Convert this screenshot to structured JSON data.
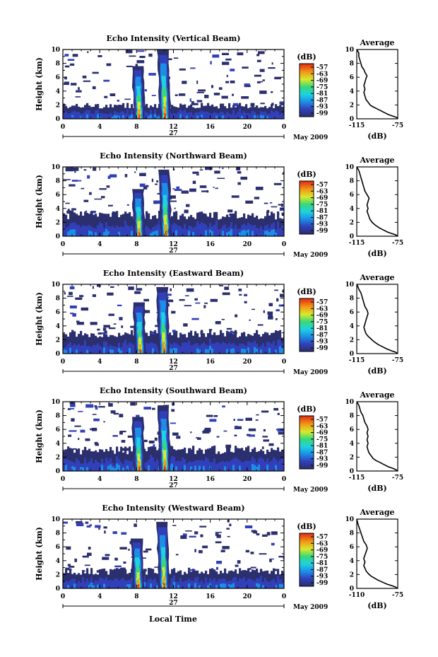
{
  "figure": {
    "xlabel": "Local Time",
    "date_label": "May 2009",
    "day_label": "27"
  },
  "chart_data": [
    {
      "type": "heatmap",
      "title": "Echo Intensity (Vertical Beam)",
      "ylabel": "Height (km)",
      "x_ticks": [
        "0",
        "4",
        "8",
        "12",
        "16",
        "20",
        "0"
      ],
      "xlim": [
        0,
        24
      ],
      "y_ticks": [
        "0",
        "2",
        "4",
        "6",
        "8",
        "10"
      ],
      "ylim": [
        0,
        10
      ],
      "colorbar": {
        "label": "(dB)",
        "ticks": [
          "-57",
          "-63",
          "-69",
          "-75",
          "-81",
          "-87",
          "-93",
          "-99"
        ]
      },
      "storm_cells": [
        {
          "time": 8.3,
          "top_km": 7.6
        },
        {
          "time": 11.1,
          "top_km": 10.0
        }
      ],
      "layer_top_km": 2.0,
      "average_profile": {
        "title": "Average",
        "xlabel": "(dB)",
        "x_ticks": [
          "-115",
          "-75"
        ],
        "xlim": [
          -115,
          -75
        ],
        "ylim": [
          0,
          10
        ],
        "points": [
          [
            -75,
            0.0
          ],
          [
            -76,
            0.2
          ],
          [
            -80,
            0.4
          ],
          [
            -84,
            0.6
          ],
          [
            -88,
            0.9
          ],
          [
            -92,
            1.2
          ],
          [
            -96,
            1.5
          ],
          [
            -100,
            1.8
          ],
          [
            -102,
            2.0
          ],
          [
            -104,
            2.4
          ],
          [
            -106,
            2.8
          ],
          [
            -107,
            3.3
          ],
          [
            -108,
            3.8
          ],
          [
            -107,
            4.3
          ],
          [
            -108,
            4.8
          ],
          [
            -107,
            5.3
          ],
          [
            -106,
            5.8
          ],
          [
            -105,
            6.2
          ],
          [
            -107,
            6.7
          ],
          [
            -108,
            7.1
          ],
          [
            -110,
            7.5
          ],
          [
            -111,
            8.0
          ],
          [
            -112,
            8.5
          ],
          [
            -113,
            9.0
          ],
          [
            -113,
            9.5
          ],
          [
            -115,
            10.0
          ]
        ]
      }
    },
    {
      "type": "heatmap",
      "title": "Echo Intensity (Northward Beam)",
      "ylabel": "Height (km)",
      "x_ticks": [
        "0",
        "4",
        "8",
        "12",
        "16",
        "20",
        "0"
      ],
      "xlim": [
        0,
        24
      ],
      "y_ticks": [
        "0",
        "2",
        "4",
        "6",
        "8",
        "10"
      ],
      "ylim": [
        0,
        10
      ],
      "colorbar": {
        "label": "(dB)",
        "ticks": [
          "-57",
          "-63",
          "-69",
          "-75",
          "-81",
          "-87",
          "-93",
          "-99"
        ]
      },
      "storm_cells": [
        {
          "time": 8.3,
          "top_km": 6.8
        },
        {
          "time": 11.2,
          "top_km": 9.6
        }
      ],
      "layer_top_km": 3.2,
      "average_profile": {
        "title": "Average",
        "xlabel": "(dB)",
        "x_ticks": [
          "-115",
          "-75"
        ],
        "xlim": [
          -115,
          -75
        ],
        "ylim": [
          0,
          10
        ],
        "points": [
          [
            -75,
            0.0
          ],
          [
            -77,
            0.2
          ],
          [
            -81,
            0.4
          ],
          [
            -85,
            0.6
          ],
          [
            -89,
            0.9
          ],
          [
            -93,
            1.2
          ],
          [
            -97,
            1.6
          ],
          [
            -100,
            2.0
          ],
          [
            -102,
            2.4
          ],
          [
            -103,
            2.8
          ],
          [
            -104,
            3.2
          ],
          [
            -105,
            3.6
          ],
          [
            -104,
            4.0
          ],
          [
            -105,
            4.5
          ],
          [
            -104,
            5.0
          ],
          [
            -103,
            5.5
          ],
          [
            -105,
            6.0
          ],
          [
            -107,
            6.5
          ],
          [
            -108,
            7.0
          ],
          [
            -109,
            7.5
          ],
          [
            -110,
            8.0
          ],
          [
            -111,
            8.5
          ],
          [
            -112,
            9.0
          ],
          [
            -113,
            9.5
          ],
          [
            -115,
            10.0
          ]
        ]
      }
    },
    {
      "type": "heatmap",
      "title": "Echo Intensity (Eastward Beam)",
      "ylabel": "Height (km)",
      "x_ticks": [
        "0",
        "4",
        "8",
        "12",
        "16",
        "20",
        "0"
      ],
      "xlim": [
        0,
        24
      ],
      "y_ticks": [
        "0",
        "2",
        "4",
        "6",
        "8",
        "10"
      ],
      "ylim": [
        0,
        10
      ],
      "colorbar": {
        "label": "(dB)",
        "ticks": [
          "-57",
          "-63",
          "-69",
          "-75",
          "-81",
          "-87",
          "-93",
          "-99"
        ]
      },
      "storm_cells": [
        {
          "time": 8.4,
          "top_km": 7.4
        },
        {
          "time": 11.0,
          "top_km": 9.6
        }
      ],
      "layer_top_km": 3.0,
      "average_profile": {
        "title": "Average",
        "xlabel": "(dB)",
        "x_ticks": [
          "-115",
          "-75"
        ],
        "xlim": [
          -115,
          -75
        ],
        "ylim": [
          0,
          10
        ],
        "points": [
          [
            -75,
            0.0
          ],
          [
            -77,
            0.2
          ],
          [
            -81,
            0.4
          ],
          [
            -86,
            0.7
          ],
          [
            -90,
            1.0
          ],
          [
            -94,
            1.3
          ],
          [
            -98,
            1.7
          ],
          [
            -101,
            2.1
          ],
          [
            -104,
            2.5
          ],
          [
            -106,
            2.9
          ],
          [
            -107,
            3.3
          ],
          [
            -108,
            3.8
          ],
          [
            -107,
            4.3
          ],
          [
            -106,
            4.8
          ],
          [
            -105,
            5.3
          ],
          [
            -104,
            5.8
          ],
          [
            -105,
            6.3
          ],
          [
            -107,
            6.8
          ],
          [
            -108,
            7.3
          ],
          [
            -109,
            7.8
          ],
          [
            -110,
            8.3
          ],
          [
            -111,
            8.8
          ],
          [
            -113,
            9.3
          ],
          [
            -114,
            9.7
          ],
          [
            -115,
            10.0
          ]
        ]
      }
    },
    {
      "type": "heatmap",
      "title": "Echo Intensity (Southward Beam)",
      "ylabel": "Height (km)",
      "x_ticks": [
        "0",
        "4",
        "8",
        "12",
        "16",
        "20",
        "0"
      ],
      "xlim": [
        0,
        24
      ],
      "y_ticks": [
        "0",
        "2",
        "4",
        "6",
        "8",
        "10"
      ],
      "ylim": [
        0,
        10
      ],
      "colorbar": {
        "label": "(dB)",
        "ticks": [
          "-57",
          "-63",
          "-69",
          "-75",
          "-81",
          "-87",
          "-93",
          "-99"
        ]
      },
      "storm_cells": [
        {
          "time": 8.3,
          "top_km": 7.8
        },
        {
          "time": 11.1,
          "top_km": 9.4
        }
      ],
      "layer_top_km": 3.2,
      "average_profile": {
        "title": "Average",
        "xlabel": "(dB)",
        "x_ticks": [
          "-115",
          "-75"
        ],
        "xlim": [
          -115,
          -75
        ],
        "ylim": [
          0,
          10
        ],
        "points": [
          [
            -75,
            0.0
          ],
          [
            -77,
            0.2
          ],
          [
            -80,
            0.4
          ],
          [
            -84,
            0.6
          ],
          [
            -88,
            0.9
          ],
          [
            -92,
            1.2
          ],
          [
            -96,
            1.5
          ],
          [
            -99,
            1.8
          ],
          [
            -101,
            2.2
          ],
          [
            -103,
            2.6
          ],
          [
            -104,
            3.0
          ],
          [
            -105,
            3.5
          ],
          [
            -104,
            4.0
          ],
          [
            -105,
            4.5
          ],
          [
            -104,
            5.0
          ],
          [
            -105,
            5.5
          ],
          [
            -104,
            6.0
          ],
          [
            -105,
            6.5
          ],
          [
            -107,
            7.0
          ],
          [
            -108,
            7.5
          ],
          [
            -109,
            8.0
          ],
          [
            -111,
            8.5
          ],
          [
            -112,
            9.0
          ],
          [
            -113,
            9.5
          ],
          [
            -115,
            10.0
          ]
        ]
      }
    },
    {
      "type": "heatmap",
      "title": "Echo Intensity (Westward Beam)",
      "ylabel": "Height (km)",
      "x_ticks": [
        "0",
        "4",
        "8",
        "12",
        "16",
        "20",
        "0"
      ],
      "xlim": [
        0,
        24
      ],
      "y_ticks": [
        "0",
        "2",
        "4",
        "6",
        "8",
        "10"
      ],
      "ylim": [
        0,
        10
      ],
      "colorbar": {
        "label": "(dB)",
        "ticks": [
          "-57",
          "-63",
          "-69",
          "-75",
          "-81",
          "-87",
          "-93",
          "-99"
        ]
      },
      "storm_cells": [
        {
          "time": 8.2,
          "top_km": 7.2
        },
        {
          "time": 11.0,
          "top_km": 9.6
        }
      ],
      "layer_top_km": 2.6,
      "average_profile": {
        "title": "Average",
        "xlabel": "(dB)",
        "x_ticks": [
          "-110",
          "-75"
        ],
        "xlim": [
          -110,
          -75
        ],
        "ylim": [
          0,
          10
        ],
        "points": [
          [
            -75,
            0.0
          ],
          [
            -77,
            0.2
          ],
          [
            -80,
            0.4
          ],
          [
            -84,
            0.6
          ],
          [
            -88,
            0.9
          ],
          [
            -92,
            1.2
          ],
          [
            -95,
            1.5
          ],
          [
            -98,
            1.8
          ],
          [
            -100,
            2.1
          ],
          [
            -102,
            2.5
          ],
          [
            -103,
            2.9
          ],
          [
            -104,
            3.3
          ],
          [
            -103,
            3.8
          ],
          [
            -104,
            4.3
          ],
          [
            -103,
            4.8
          ],
          [
            -102,
            5.3
          ],
          [
            -101,
            5.8
          ],
          [
            -102,
            6.3
          ],
          [
            -104,
            6.8
          ],
          [
            -105,
            7.3
          ],
          [
            -106,
            7.8
          ],
          [
            -107,
            8.3
          ],
          [
            -108,
            8.8
          ],
          [
            -109,
            9.3
          ],
          [
            -110,
            10.0
          ]
        ]
      }
    }
  ]
}
